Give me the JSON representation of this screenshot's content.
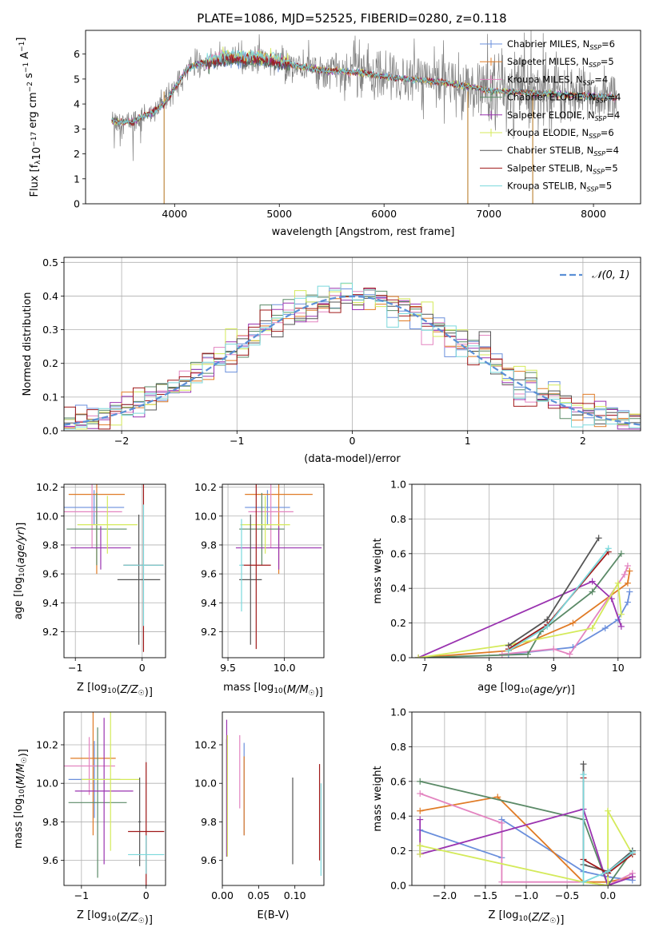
{
  "figure": {
    "title": "PLATE=1086, MJD=52525, FIBERID=0280, z=0.118"
  },
  "colors": {
    "Chabrier MILES": "#6a8fdc",
    "Salpeter MILES": "#e07b26",
    "Kroupa MILES": "#e384c0",
    "Chabrier ELODIE": "#5b8a67",
    "Salpeter ELODIE": "#9a33b0",
    "Kroupa ELODIE": "#d4ea5a",
    "Chabrier STELIB": "#555555",
    "Salpeter STELIB": "#a01a1a",
    "Kroupa STELIB": "#7ad8dc",
    "data": "#808080"
  },
  "chart_data": [
    {
      "id": "spectrum",
      "type": "line",
      "title": "PLATE=1086, MJD=52525, FIBERID=0280, z=0.118",
      "xlabel": "wavelength [Angstrom, rest frame]",
      "ylabel": "Flux [f_λ 10^-17 erg cm^-2 s^-1 A^-1]",
      "xlim": [
        3150,
        8450
      ],
      "ylim": [
        0,
        6.95
      ],
      "xticks": [
        4000,
        5000,
        6000,
        7000,
        8000
      ],
      "yticks": [
        0,
        1,
        2,
        3,
        4,
        5,
        6
      ],
      "grid": false,
      "legend_position": "upper-right",
      "legend": [
        {
          "name": "Chabrier MILES",
          "label": "Chabrier MILES, N",
          "sub": "SSP",
          "tail": "=6"
        },
        {
          "name": "Salpeter MILES",
          "label": "Salpeter MILES, N",
          "sub": "SSP",
          "tail": "=5"
        },
        {
          "name": "Kroupa MILES",
          "label": "Kroupa MILES, N",
          "sub": "SSP",
          "tail": "=4"
        },
        {
          "name": "Chabrier ELODIE",
          "label": "Chabrier ELODIE, N",
          "sub": "SSP",
          "tail": "=4"
        },
        {
          "name": "Salpeter ELODIE",
          "label": "Salpeter ELODIE, N",
          "sub": "SSP",
          "tail": "=4"
        },
        {
          "name": "Kroupa ELODIE",
          "label": "Kroupa ELODIE, N",
          "sub": "SSP",
          "tail": "=6"
        },
        {
          "name": "Chabrier STELIB",
          "label": "Chabrier STELIB, N",
          "sub": "SSP",
          "tail": "=4"
        },
        {
          "name": "Salpeter STELIB",
          "label": "Salpeter STELIB, N",
          "sub": "SSP",
          "tail": "=5"
        },
        {
          "name": "Kroupa STELIB",
          "label": "Kroupa STELIB, N",
          "sub": "SSP",
          "tail": "=5"
        }
      ],
      "continuum_x": [
        3400,
        3500,
        3600,
        3700,
        3800,
        3900,
        4000,
        4100,
        4200,
        4300,
        4400,
        4500,
        4600,
        4700,
        4800,
        4900,
        5000,
        5200,
        5400,
        5600,
        5800,
        6000,
        6200,
        6400,
        6600,
        6800,
        7000,
        7200,
        7400,
        7600,
        7800,
        8000,
        8200
      ],
      "continuum_y": [
        3.35,
        3.25,
        3.3,
        3.5,
        3.7,
        4.0,
        4.6,
        5.3,
        5.6,
        5.65,
        5.75,
        5.85,
        5.8,
        5.8,
        5.85,
        5.75,
        5.7,
        5.5,
        5.35,
        5.3,
        5.25,
        5.1,
        5.0,
        4.95,
        4.85,
        4.7,
        4.55,
        4.5,
        4.45,
        4.4,
        4.35,
        4.3,
        4.25
      ]
    },
    {
      "id": "residuals",
      "type": "line",
      "xlabel": "(data-model)/error",
      "ylabel": "Normed distribution",
      "xlim": [
        -2.5,
        2.5
      ],
      "ylim": [
        0,
        0.515
      ],
      "xticks": [
        -2,
        -1,
        0,
        1,
        2
      ],
      "yticks": [
        0.0,
        0.1,
        0.2,
        0.3,
        0.4,
        0.5
      ],
      "grid": true,
      "legend_position": "upper-right",
      "legend": [
        {
          "name": "N(0,1)",
          "label": "𝒩(0, 1)"
        }
      ],
      "gaussian": {
        "mu": 0,
        "sigma": 1
      }
    },
    {
      "id": "age-Z",
      "type": "scatter",
      "xlabel": "Z [log10(Z/Z☉)]",
      "ylabel": "age [log10(age/yr)]",
      "xlim": [
        -1.17,
        0.35
      ],
      "ylim": [
        9.02,
        10.22
      ],
      "xticks": [
        -1,
        0
      ],
      "yticks": [
        9.2,
        9.4,
        9.6,
        9.8,
        10.0,
        10.2
      ],
      "grid": true,
      "points": [
        {
          "model": "Chabrier MILES",
          "x": -0.72,
          "y": 10.06,
          "xerr": 0.45,
          "yerr": 0.12
        },
        {
          "model": "Salpeter MILES",
          "x": -0.68,
          "y": 10.15,
          "xerr": 0.42,
          "yerr": 0.55
        },
        {
          "model": "Kroupa MILES",
          "x": -0.75,
          "y": 10.03,
          "xerr": 0.45,
          "yerr": 0.25
        },
        {
          "model": "Chabrier ELODIE",
          "x": -0.68,
          "y": 9.91,
          "xerr": 0.45,
          "yerr": 0.25
        },
        {
          "model": "Salpeter ELODIE",
          "x": -0.62,
          "y": 9.78,
          "xerr": 0.45,
          "yerr": 0.15
        },
        {
          "model": "Kroupa ELODIE",
          "x": -0.52,
          "y": 9.94,
          "xerr": 0.45,
          "yerr": 0.2
        },
        {
          "model": "Chabrier STELIB",
          "x": -0.05,
          "y": 9.56,
          "xerr": 0.32,
          "yerr": 0.45
        },
        {
          "model": "Salpeter STELIB",
          "x": 0.02,
          "y": 9.66,
          "xerr": 0.3,
          "yerr": 0.6
        },
        {
          "model": "Kroupa STELIB",
          "x": 0.02,
          "y": 9.66,
          "xerr": 0.3,
          "yerr": 0.42
        }
      ]
    },
    {
      "id": "age-mass",
      "type": "scatter",
      "xlabel": "mass [log10(M/M☉)]",
      "ylabel": "",
      "xlim": [
        9.45,
        10.35
      ],
      "ylim": [
        9.02,
        10.22
      ],
      "xticks": [
        9.5,
        10.0
      ],
      "yticks": [
        9.2,
        9.4,
        9.6,
        9.8,
        10.0,
        10.2
      ],
      "grid": true,
      "points": [
        {
          "model": "Chabrier MILES",
          "x": 9.85,
          "y": 10.06,
          "xerr": 0.2,
          "yerr": 0.12
        },
        {
          "model": "Salpeter MILES",
          "x": 9.95,
          "y": 10.15,
          "xerr": 0.3,
          "yerr": 0.55
        },
        {
          "model": "Kroupa MILES",
          "x": 9.88,
          "y": 10.03,
          "xerr": 0.2,
          "yerr": 0.25
        },
        {
          "model": "Chabrier ELODIE",
          "x": 9.8,
          "y": 9.91,
          "xerr": 0.2,
          "yerr": 0.25
        },
        {
          "model": "Salpeter ELODIE",
          "x": 9.95,
          "y": 9.78,
          "xerr": 0.38,
          "yerr": 0.15
        },
        {
          "model": "Kroupa ELODIE",
          "x": 9.83,
          "y": 9.94,
          "xerr": 0.22,
          "yerr": 0.2
        },
        {
          "model": "Chabrier STELIB",
          "x": 9.7,
          "y": 9.56,
          "xerr": 0.1,
          "yerr": 0.45
        },
        {
          "model": "Salpeter STELIB",
          "x": 9.75,
          "y": 9.66,
          "xerr": 0.13,
          "yerr": 0.58
        },
        {
          "model": "Kroupa STELIB",
          "x": 9.62,
          "y": 9.66,
          "xerr": 0.02,
          "yerr": 0.32
        }
      ]
    },
    {
      "id": "weight-age",
      "type": "line",
      "xlabel": "age [log10(age/yr)]",
      "ylabel": "mass weight",
      "xlim": [
        6.8,
        10.35
      ],
      "ylim": [
        0,
        1.0
      ],
      "xticks": [
        7,
        8,
        9,
        10
      ],
      "yticks": [
        0.0,
        0.2,
        0.4,
        0.6,
        0.8,
        1.0
      ],
      "grid": true,
      "series": [
        {
          "model": "Chabrier MILES",
          "x": [
            8.3,
            9.3,
            9.8,
            10.0,
            10.15,
            10.18
          ],
          "y": [
            0.02,
            0.06,
            0.17,
            0.22,
            0.32,
            0.38
          ]
        },
        {
          "model": "Salpeter MILES",
          "x": [
            6.9,
            8.3,
            9.3,
            10.15,
            10.18
          ],
          "y": [
            0.0,
            0.04,
            0.2,
            0.43,
            0.5
          ]
        },
        {
          "model": "Kroupa MILES",
          "x": [
            8.2,
            9.0,
            9.25,
            10.1,
            10.15
          ],
          "y": [
            0.02,
            0.05,
            0.02,
            0.48,
            0.53
          ]
        },
        {
          "model": "Chabrier ELODIE",
          "x": [
            6.9,
            8.6,
            8.8,
            9.6,
            10.05
          ],
          "y": [
            0.0,
            0.02,
            0.15,
            0.38,
            0.6
          ]
        },
        {
          "model": "Salpeter ELODIE",
          "x": [
            6.9,
            9.6,
            9.9,
            10.05
          ],
          "y": [
            0.0,
            0.44,
            0.34,
            0.18
          ]
        },
        {
          "model": "Kroupa ELODIE",
          "x": [
            6.9,
            8.4,
            9.6,
            10.0,
            10.05
          ],
          "y": [
            0.0,
            0.08,
            0.17,
            0.43,
            0.25
          ]
        },
        {
          "model": "Chabrier STELIB",
          "x": [
            8.3,
            8.9,
            9.7
          ],
          "y": [
            0.07,
            0.22,
            0.69
          ]
        },
        {
          "model": "Salpeter STELIB",
          "x": [
            8.3,
            8.9,
            9.85
          ],
          "y": [
            0.05,
            0.19,
            0.61
          ]
        },
        {
          "model": "Kroupa STELIB",
          "x": [
            8.3,
            8.9,
            9.85
          ],
          "y": [
            0.04,
            0.18,
            0.63
          ]
        }
      ]
    },
    {
      "id": "mass-Z",
      "type": "scatter",
      "xlabel": "Z [log10(Z/Z☉)]",
      "ylabel": "mass [log10(M/M☉)]",
      "xlim": [
        -1.27,
        0.3
      ],
      "ylim": [
        9.47,
        10.37
      ],
      "xticks": [
        -1,
        0
      ],
      "yticks": [
        9.6,
        9.8,
        10.0,
        10.2
      ],
      "grid": true,
      "points": [
        {
          "model": "Chabrier MILES",
          "x": -0.8,
          "y": 10.02,
          "xerr": 0.4,
          "yerr": 0.2
        },
        {
          "model": "Salpeter MILES",
          "x": -0.82,
          "y": 10.13,
          "xerr": 0.35,
          "yerr": 0.4
        },
        {
          "model": "Kroupa MILES",
          "x": -0.88,
          "y": 10.09,
          "xerr": 0.4,
          "yerr": 0.15
        },
        {
          "model": "Chabrier ELODIE",
          "x": -0.75,
          "y": 9.9,
          "xerr": 0.45,
          "yerr": 0.39
        },
        {
          "model": "Salpeter ELODIE",
          "x": -0.65,
          "y": 9.96,
          "xerr": 0.45,
          "yerr": 0.38
        },
        {
          "model": "Kroupa ELODIE",
          "x": -0.55,
          "y": 10.02,
          "xerr": 0.45,
          "yerr": 0.37
        },
        {
          "model": "Chabrier STELIB",
          "x": -0.1,
          "y": 9.8,
          "xerr": 0.02,
          "yerr": 0.23
        },
        {
          "model": "Salpeter STELIB",
          "x": 0.0,
          "y": 9.75,
          "xerr": 0.28,
          "yerr": 0.36
        },
        {
          "model": "Kroupa STELIB",
          "x": 0.0,
          "y": 9.63,
          "xerr": 0.28,
          "yerr": 0.1
        }
      ]
    },
    {
      "id": "mass-EBV",
      "type": "scatter",
      "xlabel": "E(B-V)",
      "ylabel": "",
      "xlim": [
        0.0,
        0.14
      ],
      "ylim": [
        9.47,
        10.37
      ],
      "xticks": [
        0.0,
        0.05,
        0.1
      ],
      "xticklabels": [
        "0.00",
        "0.05",
        "0.10"
      ],
      "yticks": [
        9.6,
        9.8,
        10.0,
        10.2
      ],
      "grid": false,
      "points": [
        {
          "model": "Chabrier MILES",
          "x": 0.03,
          "yerr_lo": 9.73,
          "yerr_hi": 10.21
        },
        {
          "model": "Salpeter MILES",
          "x": 0.03,
          "yerr_lo": 9.73,
          "yerr_hi": 10.14
        },
        {
          "model": "Kroupa MILES",
          "x": 0.024,
          "yerr_lo": 9.87,
          "yerr_hi": 10.25
        },
        {
          "model": "Chabrier ELODIE",
          "x": 0.006,
          "yerr_lo": 9.62,
          "yerr_hi": 10.23
        },
        {
          "model": "Salpeter ELODIE",
          "x": 0.006,
          "yerr_lo": 9.62,
          "yerr_hi": 10.33
        },
        {
          "model": "Kroupa ELODIE",
          "x": 0.007,
          "yerr_lo": 9.62,
          "yerr_hi": 10.25
        },
        {
          "model": "Chabrier STELIB",
          "x": 0.097,
          "yerr_lo": 9.58,
          "yerr_hi": 10.03
        },
        {
          "model": "Salpeter STELIB",
          "x": 0.134,
          "yerr_lo": 9.6,
          "yerr_hi": 10.1
        },
        {
          "model": "Kroupa STELIB",
          "x": 0.136,
          "yerr_lo": 9.52,
          "yerr_hi": 10.0
        }
      ]
    },
    {
      "id": "weight-Z",
      "type": "line",
      "xlabel": "Z [log10(Z/Z☉)]",
      "ylabel": "mass weight",
      "xlim": [
        -2.4,
        0.4
      ],
      "ylim": [
        0,
        1.0
      ],
      "xticks": [
        -2.0,
        -1.5,
        -1.0,
        -0.5,
        0.0
      ],
      "xticklabels": [
        "−2.0",
        "−1.5",
        "−1.0",
        "−0.5",
        "0.0"
      ],
      "yticks": [
        0.0,
        0.2,
        0.4,
        0.6,
        0.8,
        1.0
      ],
      "grid": true,
      "series": [
        {
          "model": "Chabrier MILES",
          "x": [
            -2.3,
            -1.3,
            -1.3,
            -0.3,
            0.0,
            0.3
          ],
          "y": [
            0.32,
            0.16,
            0.38,
            0.08,
            0.05,
            0.03
          ]
        },
        {
          "model": "Salpeter MILES",
          "x": [
            -2.3,
            -1.35,
            -0.3,
            0.0,
            0.3
          ],
          "y": [
            0.43,
            0.51,
            0.02,
            0.02,
            0.05
          ]
        },
        {
          "model": "Kroupa MILES",
          "x": [
            -2.3,
            -1.3,
            -1.3,
            -0.3,
            0.0,
            0.3
          ],
          "y": [
            0.53,
            0.36,
            0.02,
            0.02,
            0.0,
            0.07
          ]
        },
        {
          "model": "Chabrier ELODIE",
          "x": [
            -2.3,
            -0.3,
            0.0,
            0.3
          ],
          "y": [
            0.6,
            0.38,
            0.0,
            0.2
          ]
        },
        {
          "model": "Salpeter ELODIE",
          "x": [
            -2.3,
            -2.3,
            -0.3,
            0.0,
            0.3
          ],
          "y": [
            0.38,
            0.18,
            0.44,
            0.0,
            0.05
          ]
        },
        {
          "model": "Kroupa ELODIE",
          "x": [
            -2.3,
            -2.3,
            -0.3,
            0.0,
            0.0,
            0.3
          ],
          "y": [
            0.18,
            0.23,
            0.02,
            0.0,
            0.43,
            0.18
          ]
        },
        {
          "model": "Chabrier STELIB",
          "x": [
            -0.3,
            -0.3,
            0.0,
            0.3
          ],
          "y": [
            0.7,
            0.12,
            0.08,
            0.2
          ]
        },
        {
          "model": "Salpeter STELIB",
          "x": [
            -0.3,
            -0.3,
            0.0,
            0.3
          ],
          "y": [
            0.62,
            0.15,
            0.07,
            0.18
          ]
        },
        {
          "model": "Kroupa STELIB",
          "x": [
            -0.3,
            -0.3,
            0.0,
            0.3
          ],
          "y": [
            0.64,
            0.02,
            0.08,
            0.19
          ]
        }
      ]
    }
  ]
}
